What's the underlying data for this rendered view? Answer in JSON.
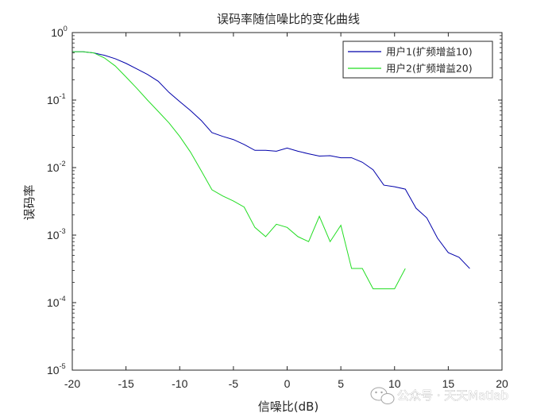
{
  "chart_data": {
    "type": "line",
    "title": "误码率随信噪比的变化曲线",
    "xlabel": "信噪比(dB)",
    "ylabel": "误码率",
    "xlim": [
      -20,
      20
    ],
    "ylim": [
      1e-05,
      1
    ],
    "yscale": "log",
    "xticks": [
      -20,
      -15,
      -10,
      -5,
      0,
      5,
      10,
      15,
      20
    ],
    "yticks": [
      {
        "base": "10",
        "exp": "0"
      },
      {
        "base": "10",
        "exp": "-1"
      },
      {
        "base": "10",
        "exp": "-2"
      },
      {
        "base": "10",
        "exp": "-3"
      },
      {
        "base": "10",
        "exp": "-4"
      },
      {
        "base": "10",
        "exp": "-5"
      }
    ],
    "grid": false,
    "legend_position": "top-right",
    "series": [
      {
        "name": "用户1(扩频增益10)",
        "color": "#0000aa",
        "x": [
          -20,
          -19,
          -18,
          -17,
          -16,
          -15,
          -14,
          -13,
          -12,
          -11,
          -10,
          -9,
          -8,
          -7,
          -6,
          -5,
          -4,
          -3,
          -2,
          -1,
          0,
          1,
          2,
          3,
          4,
          5,
          6,
          7,
          8,
          9,
          10,
          11,
          12,
          13,
          14,
          15,
          16,
          17
        ],
        "y": [
          0.52,
          0.52,
          0.5,
          0.46,
          0.41,
          0.35,
          0.29,
          0.24,
          0.19,
          0.13,
          0.095,
          0.07,
          0.05,
          0.033,
          0.029,
          0.026,
          0.022,
          0.018,
          0.018,
          0.0175,
          0.0195,
          0.0175,
          0.016,
          0.0148,
          0.015,
          0.014,
          0.014,
          0.012,
          0.0093,
          0.0055,
          0.0052,
          0.0048,
          0.0025,
          0.0018,
          0.0009,
          0.00055,
          0.00047,
          0.00032
        ]
      },
      {
        "name": "用户2(扩频增益20)",
        "color": "#22dd22",
        "x": [
          -20,
          -19,
          -18,
          -17,
          -16,
          -15,
          -14,
          -13,
          -12,
          -11,
          -10,
          -9,
          -8,
          -7,
          -6,
          -5,
          -4,
          -3,
          -2,
          -1,
          0,
          1,
          2,
          3,
          4,
          5,
          6,
          7,
          8,
          9,
          10,
          11
        ],
        "y": [
          0.52,
          0.52,
          0.5,
          0.42,
          0.32,
          0.22,
          0.15,
          0.1,
          0.068,
          0.046,
          0.029,
          0.017,
          0.009,
          0.0047,
          0.0038,
          0.0032,
          0.0026,
          0.0013,
          0.00095,
          0.00145,
          0.0013,
          0.00095,
          0.0008,
          0.0019,
          0.0008,
          0.0014,
          0.00032,
          0.00032,
          0.00016,
          0.00016,
          0.00016,
          0.00032
        ]
      }
    ]
  },
  "watermark": {
    "text": "公众号 · 天天Matlab",
    "icon": "wechat-icon"
  }
}
